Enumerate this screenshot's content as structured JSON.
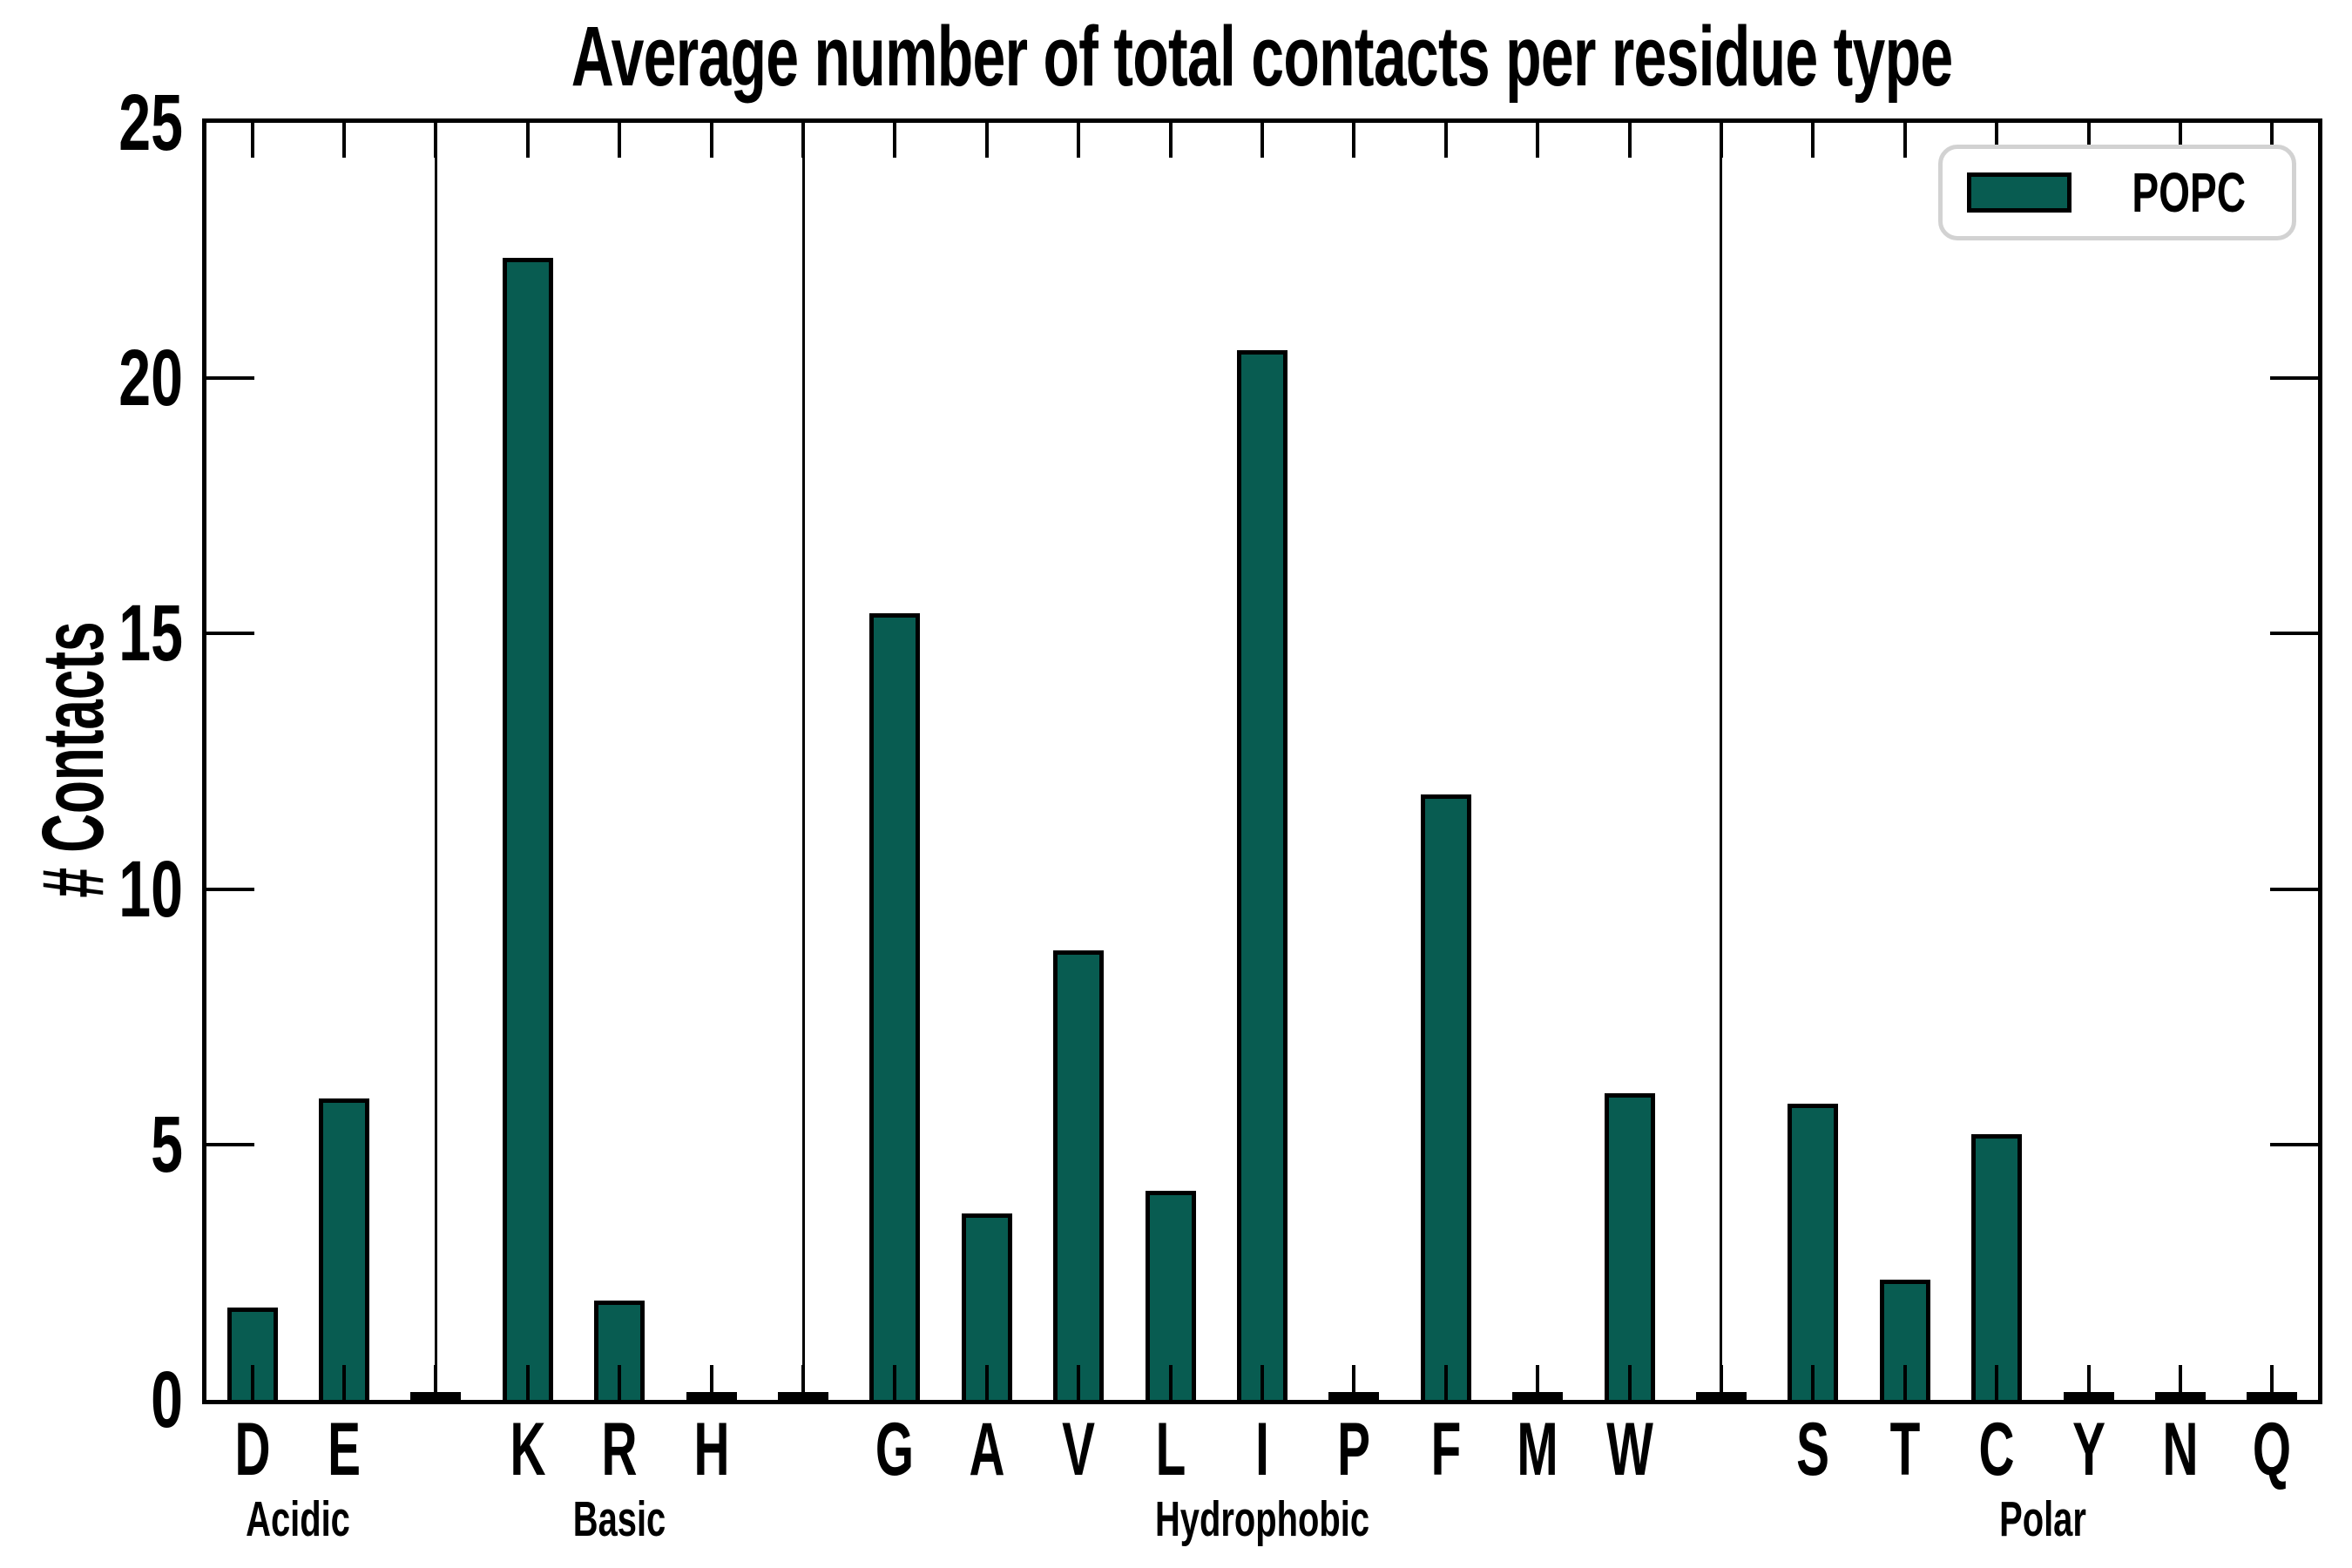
{
  "chart_data": {
    "type": "bar",
    "title": "Average number of total contacts per residue type",
    "ylabel": "# Contacts",
    "xlabel": "",
    "ylim": [
      0,
      25
    ],
    "yticks": [
      0,
      5,
      10,
      15,
      20,
      25
    ],
    "grid": false,
    "legend": {
      "label": "POPC",
      "position": "upper right"
    },
    "bar_color": "#085c51",
    "bar_edge_color": "#000000",
    "separator_between_groups": true,
    "groups": [
      {
        "label": "Acidic",
        "categories": [
          "D",
          "E"
        ],
        "values": [
          1.8,
          5.9
        ]
      },
      {
        "label": "Basic",
        "categories": [
          "K",
          "R",
          "H"
        ],
        "values": [
          22.35,
          1.95,
          0.05
        ]
      },
      {
        "label": "Hydrophobic",
        "categories": [
          "G",
          "A",
          "V",
          "L",
          "I",
          "P",
          "F",
          "M",
          "W"
        ],
        "values": [
          15.4,
          3.65,
          8.8,
          4.1,
          20.55,
          0.05,
          11.85,
          0.05,
          6.0
        ]
      },
      {
        "label": "Polar",
        "categories": [
          "S",
          "T",
          "C",
          "Y",
          "N",
          "Q"
        ],
        "values": [
          5.8,
          2.35,
          5.2,
          0.05,
          0.05,
          0.05
        ]
      }
    ],
    "categories": [
      "D",
      "E",
      "K",
      "R",
      "H",
      "G",
      "A",
      "V",
      "L",
      "I",
      "P",
      "F",
      "M",
      "W",
      "S",
      "T",
      "C",
      "Y",
      "N",
      "Q"
    ],
    "values": [
      1.8,
      5.9,
      22.35,
      1.95,
      0.05,
      15.4,
      3.65,
      8.8,
      4.1,
      20.55,
      0.05,
      11.85,
      0.05,
      6.0,
      5.8,
      2.35,
      5.2,
      0.05,
      0.05,
      0.05
    ]
  }
}
